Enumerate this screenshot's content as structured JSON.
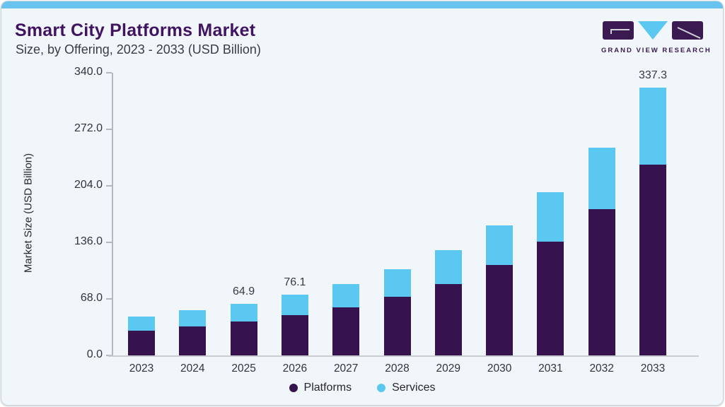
{
  "header": {
    "title": "Smart City Platforms Market",
    "subtitle": "Size, by Offering, 2023 - 2033 (USD Billion)"
  },
  "logo": {
    "text": "GRAND VIEW RESEARCH"
  },
  "colors": {
    "accent_bar": "#68c3ee",
    "title": "#411462",
    "platforms": "#36124E",
    "services": "#5BC8F2",
    "logo_purple": "#3b1a52",
    "logo_blue": "#5BC8F2"
  },
  "chart_data": {
    "type": "bar",
    "stacked": true,
    "title": "Smart City Platforms Market Size, by Offering, 2023 - 2033 (USD Billion)",
    "categories": [
      "2023",
      "2024",
      "2025",
      "2026",
      "2027",
      "2028",
      "2029",
      "2030",
      "2031",
      "2032",
      "2033"
    ],
    "series": [
      {
        "name": "Platforms",
        "color": "#36124E",
        "values": [
          31.1,
          36.2,
          42.4,
          51.0,
          60.4,
          74.1,
          89.8,
          113.4,
          143.1,
          184.4,
          240.4
        ]
      },
      {
        "name": "Services",
        "color": "#5BC8F2",
        "values": [
          18.1,
          20.4,
          22.5,
          25.1,
          29.7,
          34.1,
          42.7,
          50.0,
          62.0,
          77.3,
          96.9
        ]
      }
    ],
    "total_labels": [
      "",
      "",
      "64.9",
      "76.1",
      "",
      "",
      "",
      "",
      "",
      "",
      "337.3"
    ],
    "xlabel": "",
    "ylabel": "Market Size (USD Billion)",
    "ylim": [
      0,
      340
    ],
    "yticks": [
      "0.0",
      "68.0",
      "136.0",
      "204.0",
      "272.0",
      "340.0"
    ],
    "grid": false,
    "legend_position": "bottom"
  }
}
